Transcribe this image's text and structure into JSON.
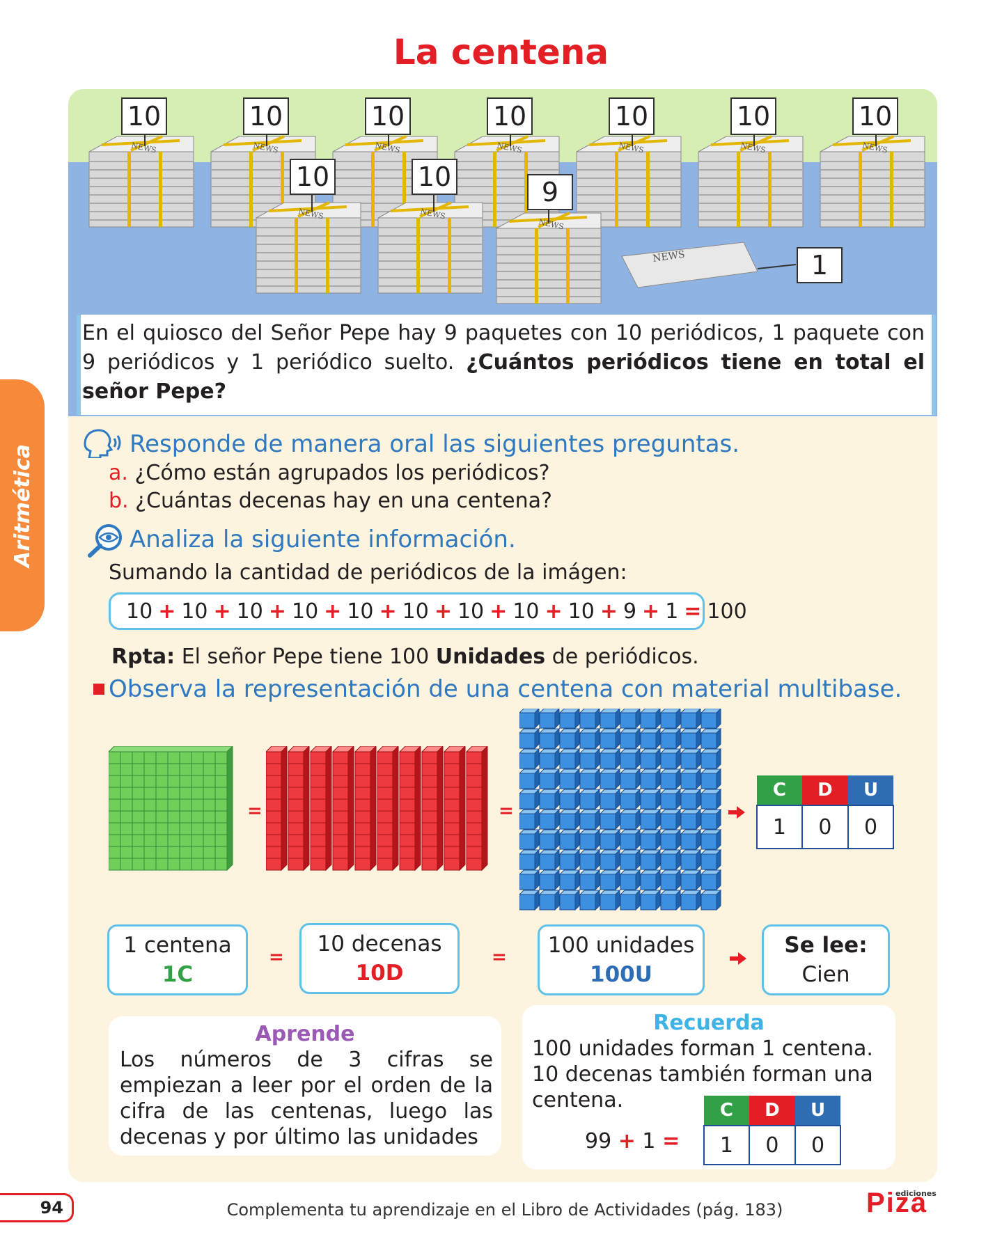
{
  "title": "La centena",
  "side_tab": "Aritmética",
  "scene": {
    "labels_top": [
      "10",
      "10",
      "10",
      "10",
      "10",
      "10",
      "10"
    ],
    "labels_mid": [
      "10",
      "10"
    ],
    "label_nine": "9",
    "label_one": "1",
    "paper_text": "NEWS"
  },
  "problem": {
    "text": "En el quiosco del Señor Pepe hay 9 paquetes con 10 periódicos, 1 paquete con 9 periódicos y 1 periódico suelto.",
    "question": "¿Cuántos periódicos tiene en total el señor Pepe?"
  },
  "oral": {
    "heading": "Responde de manera oral las siguientes preguntas.",
    "a_letter": "a.",
    "a_text": "¿Cómo están agrupados los periódicos?",
    "b_letter": "b.",
    "b_text": "¿Cuántas decenas hay en una centena?"
  },
  "analyze": {
    "heading": "Analiza la siguiente información.",
    "intro": "Sumando la cantidad de periódicos de la imágen:",
    "sum_terms": [
      "10",
      "10",
      "10",
      "10",
      "10",
      "10",
      "10",
      "10",
      "10",
      "9",
      "1"
    ],
    "plus": "+",
    "equals": "=",
    "result": "100",
    "answer_label": "Rpta:",
    "answer_pre": "El señor Pepe tiene 100",
    "answer_bold": "Unidades",
    "answer_post": "de periódicos."
  },
  "observe": {
    "heading": "Observa la representación de una centena con material multibase."
  },
  "cdu": {
    "c": "C",
    "d": "D",
    "u": "U",
    "values": [
      "1",
      "0",
      "0"
    ]
  },
  "equiv": {
    "centena_top": "1 centena",
    "centena_bottom": "1C",
    "decenas_top": "10 decenas",
    "decenas_bottom": "10D",
    "unidades_top": "100 unidades",
    "unidades_bottom": "100U",
    "se_lee_label": "Se lee:",
    "se_lee_value": "Cien"
  },
  "aprende": {
    "title": "Aprende",
    "text": "Los números de 3 cifras se empiezan a leer por el orden de la cifra de las centenas, luego las decenas y por último las unidades"
  },
  "recuerda": {
    "title": "Recuerda",
    "line1": "100 unidades forman 1 centena.",
    "line2": "10 decenas también forman una centena.",
    "eq_left": "99",
    "eq_right": "1"
  },
  "footer": {
    "page": "94",
    "text": "Complementa tu aprendizaje en el Libro de Actividades (pág. 183)",
    "brand_small": "ediciones",
    "brand": "Piza"
  },
  "colors": {
    "green": "#31a047",
    "red": "#e31e24",
    "blue": "#2e6db4",
    "light_blue": "#5fc0e8",
    "purple": "#9b59b6"
  }
}
